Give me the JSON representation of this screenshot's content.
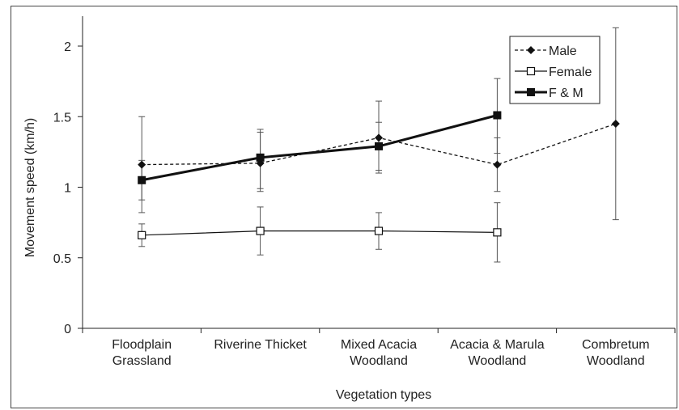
{
  "chart_data": {
    "type": "line",
    "title": "",
    "xlabel": "Vegetation types",
    "ylabel": "Movement speed (km/h)",
    "ylim": [
      0,
      2.2
    ],
    "yticks": [
      "0",
      "0.5",
      "1",
      "1.5",
      "2"
    ],
    "ytick_values": [
      0,
      0.5,
      1,
      1.5,
      2
    ],
    "categories": [
      [
        "Floodplain",
        "Grassland"
      ],
      [
        "Riverine Thicket"
      ],
      [
        "Mixed Acacia",
        "Woodland"
      ],
      [
        "Acacia & Marula",
        "Woodland"
      ],
      [
        "Combretum",
        "Woodland"
      ]
    ],
    "legend_position": "top-right",
    "series": [
      {
        "name": "Male",
        "style": "dashed",
        "marker": "diamond",
        "color": "#111111",
        "values": [
          1.16,
          1.17,
          1.35,
          1.16,
          1.45
        ],
        "err_low": [
          0.82,
          0.97,
          1.1,
          0.97,
          0.77
        ],
        "err_high": [
          1.5,
          1.41,
          1.61,
          1.35,
          2.13
        ]
      },
      {
        "name": "Female",
        "style": "solid-thin",
        "marker": "open-square",
        "color": "#111111",
        "values": [
          0.66,
          0.69,
          0.69,
          0.68,
          null
        ],
        "err_low": [
          0.58,
          0.52,
          0.56,
          0.47,
          null
        ],
        "err_high": [
          0.74,
          0.86,
          0.82,
          0.89,
          null
        ]
      },
      {
        "name": "F & M",
        "style": "solid-thick",
        "marker": "filled-square",
        "color": "#111111",
        "values": [
          1.05,
          1.21,
          1.29,
          1.51,
          null
        ],
        "err_low": [
          0.91,
          0.99,
          1.12,
          1.24,
          null
        ],
        "err_high": [
          1.19,
          1.39,
          1.46,
          1.77,
          null
        ]
      }
    ]
  }
}
